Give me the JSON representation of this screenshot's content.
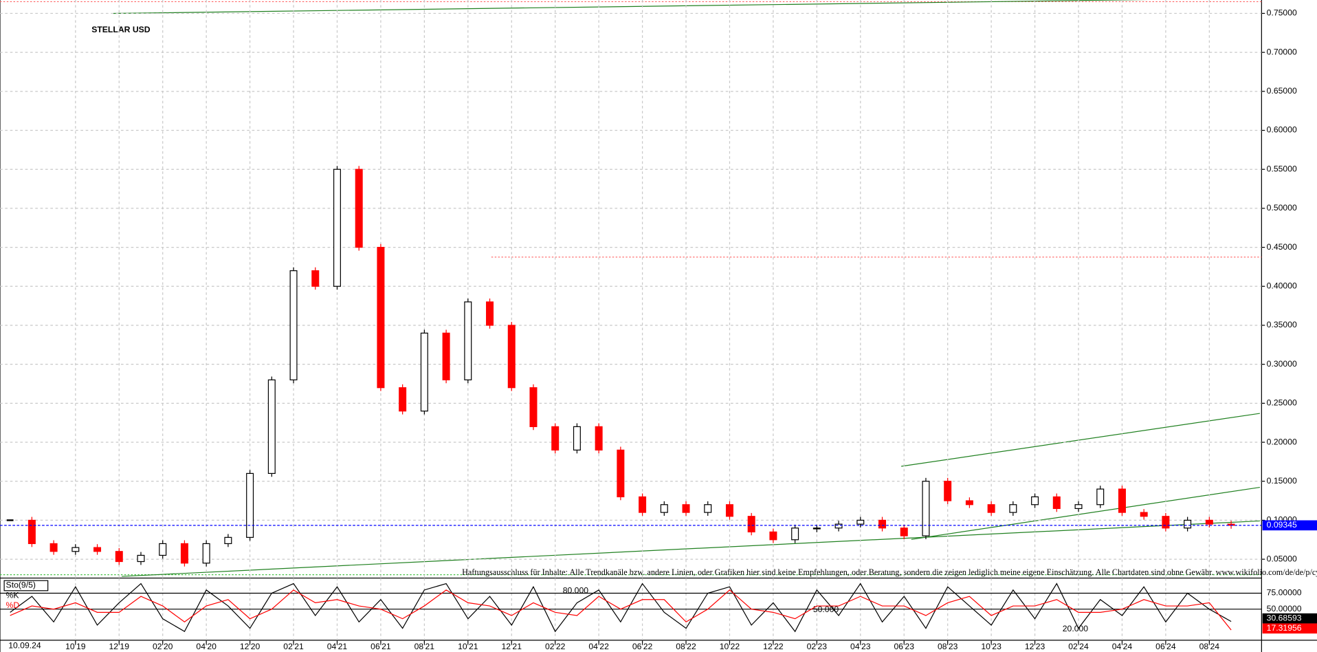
{
  "chart_data": [
    {
      "type": "candlestick",
      "title": "STELLAR USD",
      "date_label": "10.09.24",
      "x": [
        "2019-07",
        "2019-08",
        "2019-09",
        "2019-10",
        "2019-11",
        "2019-12",
        "2020-01",
        "2020-02",
        "2020-03",
        "2020-04",
        "2020-05",
        "2020-12",
        "2021-01",
        "2021-02",
        "2021-03",
        "2021-04",
        "2021-05",
        "2021-06",
        "2021-07",
        "2021-08",
        "2021-09",
        "2021-10",
        "2021-11",
        "2021-12",
        "2022-01",
        "2022-02",
        "2022-03",
        "2022-04",
        "2022-05",
        "2022-06",
        "2022-07",
        "2022-08",
        "2022-09",
        "2022-10",
        "2022-11",
        "2022-12",
        "2023-01",
        "2023-02",
        "2023-03",
        "2023-04",
        "2023-05",
        "2023-06",
        "2023-07",
        "2023-08",
        "2023-09",
        "2023-10",
        "2023-11",
        "2023-12",
        "2024-01",
        "2024-02",
        "2024-03",
        "2024-04",
        "2024-05",
        "2024-06",
        "2024-07",
        "2024-08",
        "2024-09"
      ],
      "xticks": [
        {
          "value": "2019-10",
          "label": "10'19"
        },
        {
          "value": "2019-12",
          "label": "12'19"
        },
        {
          "value": "2020-02",
          "label": "02'20"
        },
        {
          "value": "2020-04",
          "label": "04'20"
        },
        {
          "value": "2020-12",
          "label": "12'20"
        },
        {
          "value": "2021-02",
          "label": "02'21"
        },
        {
          "value": "2021-04",
          "label": "04'21"
        },
        {
          "value": "2021-06",
          "label": "06'21"
        },
        {
          "value": "2021-08",
          "label": "08'21"
        },
        {
          "value": "2021-10",
          "label": "10'21"
        },
        {
          "value": "2021-12",
          "label": "12'21"
        },
        {
          "value": "2022-02",
          "label": "02'22"
        },
        {
          "value": "2022-04",
          "label": "04'22"
        },
        {
          "value": "2022-06",
          "label": "06'22"
        },
        {
          "value": "2022-08",
          "label": "08'22"
        },
        {
          "value": "2022-10",
          "label": "10'22"
        },
        {
          "value": "2022-12",
          "label": "12'22"
        },
        {
          "value": "2023-02",
          "label": "02'23"
        },
        {
          "value": "2023-04",
          "label": "04'23"
        },
        {
          "value": "2023-06",
          "label": "06'23"
        },
        {
          "value": "2023-08",
          "label": "08'23"
        },
        {
          "value": "2023-10",
          "label": "10'23"
        },
        {
          "value": "2023-12",
          "label": "12'23"
        },
        {
          "value": "2024-02",
          "label": "02'24"
        },
        {
          "value": "2024-04",
          "label": "04'24"
        },
        {
          "value": "2024-06",
          "label": "06'24"
        },
        {
          "value": "2024-08",
          "label": "08'24"
        }
      ],
      "values": [
        0.1,
        0.07,
        0.06,
        0.065,
        0.06,
        0.047,
        0.055,
        0.07,
        0.045,
        0.07,
        0.078,
        0.16,
        0.28,
        0.42,
        0.4,
        0.55,
        0.45,
        0.27,
        0.24,
        0.34,
        0.28,
        0.38,
        0.35,
        0.27,
        0.22,
        0.19,
        0.22,
        0.19,
        0.13,
        0.11,
        0.12,
        0.11,
        0.12,
        0.105,
        0.085,
        0.075,
        0.09,
        0.09,
        0.095,
        0.1,
        0.09,
        0.08,
        0.15,
        0.125,
        0.12,
        0.11,
        0.12,
        0.13,
        0.115,
        0.12,
        0.14,
        0.11,
        0.105,
        0.09,
        0.1,
        0.095,
        0.09345
      ],
      "up_color": "#000000",
      "down_color": "#ff0000",
      "ylim": [
        0.028,
        0.765
      ],
      "yticks": [
        {
          "value": 0.05,
          "label": "0.05000"
        },
        {
          "value": 0.1,
          "label": "0.10000"
        },
        {
          "value": 0.15,
          "label": "0.15000"
        },
        {
          "value": 0.2,
          "label": "0.20000"
        },
        {
          "value": 0.25,
          "label": "0.25000"
        },
        {
          "value": 0.3,
          "label": "0.30000"
        },
        {
          "value": 0.35,
          "label": "0.35000"
        },
        {
          "value": 0.4,
          "label": "0.40000"
        },
        {
          "value": 0.45,
          "label": "0.45000"
        },
        {
          "value": 0.5,
          "label": "0.50000"
        },
        {
          "value": 0.55,
          "label": "0.55000"
        },
        {
          "value": 0.6,
          "label": "0.60000"
        },
        {
          "value": 0.65,
          "label": "0.65000"
        },
        {
          "value": 0.7,
          "label": "0.70000"
        },
        {
          "value": 0.75,
          "label": "0.75000"
        }
      ],
      "grid": true,
      "last_value": 0.09345,
      "last_color": "#0000ff",
      "annotation": "Haftungsausschluss für Inhalte: Alle Trendkanäle bzw. andere Linien, oder Grafiken hier sind keine Empfehlungen, oder Beratung, sondern die zeigen lediglich meine eigene Einschätzung. Alle Chartdaten sind ohne Gewähr.  www.wikifolio.com/de/de/p/cyberwaehrungen"
    },
    {
      "type": "line",
      "title": "Sto(9/5)",
      "series": [
        {
          "name": "%K",
          "color": "#000000",
          "last": 30.68593,
          "values": [
            45,
            70,
            30,
            85,
            25,
            60,
            90,
            35,
            15,
            80,
            55,
            20,
            75,
            90,
            40,
            85,
            30,
            65,
            20,
            80,
            90,
            35,
            70,
            25,
            85,
            15,
            60,
            80,
            30,
            90,
            45,
            20,
            75,
            85,
            25,
            60,
            15,
            80,
            40,
            90,
            30,
            70,
            20,
            85,
            55,
            25,
            80,
            35,
            90,
            20,
            65,
            40,
            85,
            30,
            75,
            50,
            30.68593
          ]
        },
        {
          "name": "%D",
          "color": "#ff0000",
          "last": 17.31956,
          "values": [
            40,
            55,
            50,
            60,
            45,
            45,
            70,
            55,
            30,
            55,
            65,
            35,
            50,
            80,
            60,
            65,
            55,
            50,
            35,
            55,
            80,
            60,
            55,
            40,
            60,
            45,
            40,
            70,
            50,
            65,
            65,
            30,
            50,
            80,
            50,
            45,
            35,
            55,
            55,
            70,
            55,
            55,
            40,
            60,
            70,
            40,
            55,
            55,
            65,
            45,
            45,
            50,
            65,
            55,
            55,
            60,
            17.31956
          ]
        }
      ],
      "ylim": [
        0,
        100
      ],
      "yticks": [
        {
          "value": 75,
          "label": "75.00000"
        },
        {
          "value": 50,
          "label": "50.00000"
        }
      ],
      "levels": [
        {
          "value": 80,
          "label": "80.000"
        },
        {
          "value": 50,
          "label": "50.000"
        },
        {
          "value": 20,
          "label": "20.000"
        }
      ]
    }
  ]
}
